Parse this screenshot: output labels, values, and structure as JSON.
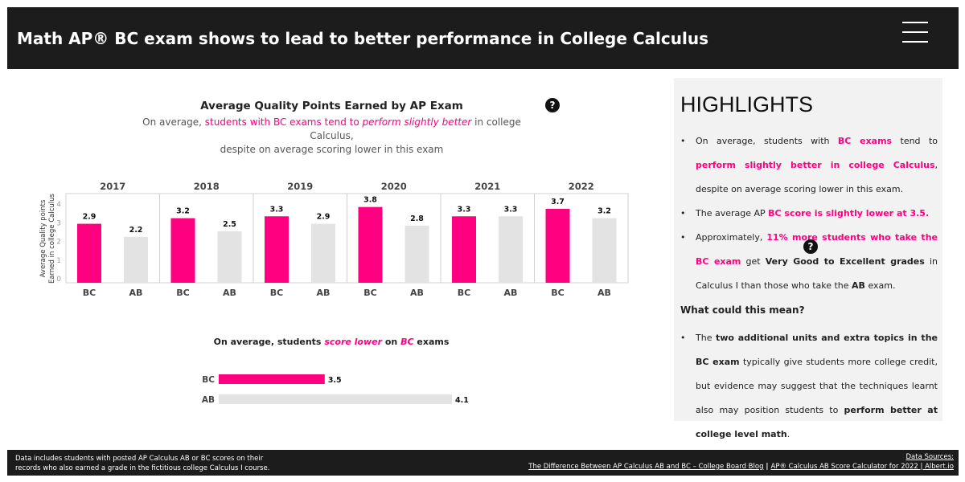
{
  "header": {
    "title": "Math AP® BC exam shows to lead to better performance in College Calculus",
    "menu_icon": "hamburger-icon"
  },
  "colors": {
    "bc": "#ff0080",
    "ab": "#e3e3e3",
    "header_bg": "#1c1c1c"
  },
  "chart_data": [
    {
      "type": "bar",
      "title": "Average Quality Points Earned by AP Exam",
      "subtitle": [
        "On average, ",
        "students with BC exams tend to ",
        "perform slightly better",
        " in college Calculus,",
        "despite on average scoring lower in this exam"
      ],
      "ylabel": [
        "Average Quality points",
        "Earned in college Calculus"
      ],
      "ylim": [
        0,
        4
      ],
      "yticks": [
        "0",
        "1",
        "2",
        "3",
        "4"
      ],
      "panels": [
        "2017",
        "2018",
        "2019",
        "2020",
        "2021",
        "2022"
      ],
      "categories": [
        "BC",
        "AB"
      ],
      "values": [
        [
          2.9,
          2.2
        ],
        [
          3.2,
          2.5
        ],
        [
          3.3,
          2.9
        ],
        [
          3.8,
          2.8
        ],
        [
          3.3,
          3.3
        ],
        [
          3.7,
          3.2
        ]
      ],
      "labels": [
        [
          "2.9",
          "2.2"
        ],
        [
          "3.2",
          "2.5"
        ],
        [
          "3.3",
          "2.9"
        ],
        [
          "3.8",
          "2.8"
        ],
        [
          "3.3",
          "3.3"
        ],
        [
          "3.7",
          "3.2"
        ]
      ]
    },
    {
      "type": "bar",
      "orientation": "horizontal",
      "title": [
        "On average, students ",
        "score lower",
        " on ",
        "BC",
        " exams"
      ],
      "categories": [
        "BC",
        "AB"
      ],
      "values": [
        3.5,
        4.1
      ],
      "labels": [
        "3.5",
        "4.1"
      ],
      "xlim": [
        3.0,
        4.1
      ]
    }
  ],
  "highlights": {
    "title": "HIGHLIGHTS",
    "b1": [
      "On average, students with ",
      "BC exams",
      " tend to ",
      "perform slightly better  in college Calculus",
      ", despite on average scoring lower in this exam."
    ],
    "b2": [
      "The average AP ",
      "BC score is slightly lower at 3.5."
    ],
    "b3": [
      "Approximately, ",
      "11% more students who take the BC exam",
      " get ",
      "Very Good to Excellent grades",
      " in Calculus I than those who take the ",
      "AB",
      " exam."
    ],
    "question": "What could this mean?",
    "b4": [
      "The ",
      "two additional units and extra topics in the BC exam",
      " typically give students more college credit, but evidence may suggest that the techniques learnt also may position students to ",
      "perform better at college level math",
      "."
    ]
  },
  "footer": {
    "note1": "Data includes students with posted AP Calculus AB or BC scores on their",
    "note2": "records who also earned a grade in the fictitious college Calculus I course.",
    "sources_label": "Data Sources:",
    "source1": "The Difference Between AP Calculus AB and BC – College Board Blog",
    "sep": " | ",
    "source2": "AP® Calculus AB Score Calculator for 2022 | Albert.io"
  }
}
